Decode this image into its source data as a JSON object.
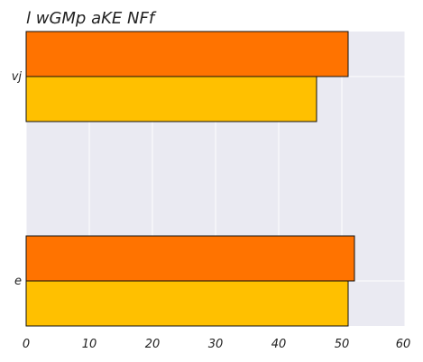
{
  "chart_data": {
    "type": "bar",
    "orientation": "horizontal",
    "title": "l wGMp aKE NFf",
    "xlabel": "",
    "ylabel": "",
    "categories": [
      "vj",
      "e"
    ],
    "series": [
      {
        "color": "#ff7300",
        "values": [
          51,
          52
        ]
      },
      {
        "color": "#ffc000",
        "values": [
          46,
          51
        ]
      }
    ],
    "xlim": [
      0,
      60
    ],
    "xticks": [
      0,
      10,
      20,
      30,
      40,
      50,
      60
    ],
    "grid": true,
    "legend": "none",
    "background_color": "#eaeaf2",
    "grid_color": "#ffffff",
    "edge_color": "#111111"
  }
}
